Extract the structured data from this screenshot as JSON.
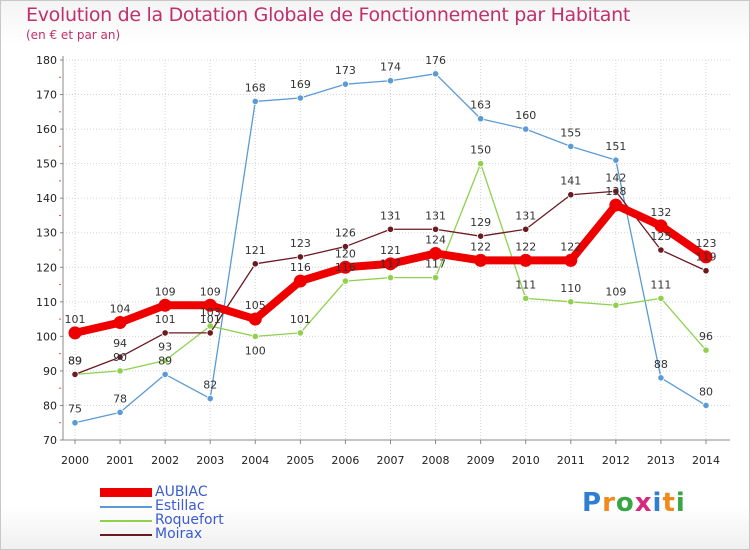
{
  "chart_data": {
    "type": "line",
    "title": "Evolution de la Dotation Globale de Fonctionnement par Habitant",
    "subtitle": "(en € et par an)",
    "xlabel": "",
    "ylabel": "",
    "ylim": [
      70,
      180
    ],
    "yticks": [
      70,
      80,
      90,
      100,
      110,
      120,
      130,
      140,
      150,
      160,
      170,
      180
    ],
    "categories": [
      "2000",
      "2001",
      "2002",
      "2003",
      "2004",
      "2005",
      "2006",
      "2007",
      "2008",
      "2009",
      "2010",
      "2011",
      "2012",
      "2013",
      "2014"
    ],
    "series": [
      {
        "name": "Estillac",
        "color": "#5b9bd5",
        "values": [
          75,
          78,
          89,
          82,
          168,
          169,
          173,
          174,
          176,
          163,
          160,
          155,
          151,
          88,
          80
        ]
      },
      {
        "name": "Roquefort",
        "color": "#8fd14f",
        "values": [
          89,
          90,
          93,
          103,
          100,
          101,
          116,
          117,
          117,
          150,
          111,
          110,
          109,
          111,
          96
        ]
      },
      {
        "name": "Moirax",
        "color": "#6b1a22",
        "values": [
          89,
          94,
          101,
          101,
          121,
          123,
          126,
          131,
          131,
          129,
          131,
          141,
          142,
          125,
          119
        ]
      },
      {
        "name": "AUBIAC",
        "color": "#ee0000",
        "values": [
          101,
          104,
          109,
          109,
          105,
          116,
          120,
          121,
          124,
          122,
          122,
          122,
          138,
          132,
          123
        ]
      }
    ]
  },
  "legend": {
    "items": [
      {
        "label": "AUBIAC",
        "color": "#ee0000"
      },
      {
        "label": "Estillac",
        "color": "#5b9bd5"
      },
      {
        "label": "Roquefort",
        "color": "#8fd14f"
      },
      {
        "label": "Moirax",
        "color": "#6b1a22"
      }
    ]
  },
  "logo": {
    "text": "Proxiti"
  }
}
